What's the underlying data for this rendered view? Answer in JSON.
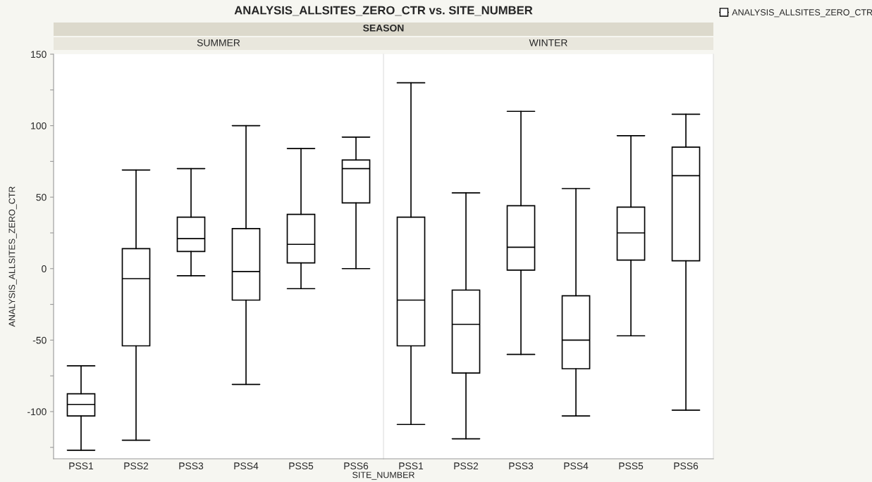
{
  "chart_data": [
    {
      "type": "box",
      "title": "ANALYSIS_ALLSITES_ZERO_CTR vs. SITE_NUMBER",
      "subtitle": "SEASON",
      "annotations": [
        "SUMMER"
      ],
      "xlabel": "SITE_NUMBER",
      "ylabel": "ANALYSIS_ALLSITES_ZERO_CTR",
      "legend": "top right",
      "grid": false,
      "categories": [
        "PSS1",
        "PSS2",
        "PSS3",
        "PSS4",
        "PSS5",
        "PSS6"
      ],
      "ylim": [
        -133,
        150
      ],
      "yticks": [
        {
          "value": -125,
          "label": null
        },
        -100,
        {
          "value": -75,
          "label": null
        },
        -50,
        {
          "value": -25,
          "label": null
        },
        0,
        {
          "value": 25,
          "label": null
        },
        50,
        {
          "value": 75,
          "label": null
        },
        100,
        {
          "value": 125,
          "label": null
        },
        150
      ],
      "series": [
        {
          "name": "ANALYSIS_ALLSITES_ZERO_CTR",
          "color": "#000000",
          "boxes": [
            {
              "low": -127,
              "q1": -103,
              "median": -95,
              "q3": -87.5,
              "high": -68
            },
            {
              "low": -120,
              "q1": -54,
              "median": -7,
              "q3": 14,
              "high": 69
            },
            {
              "low": -5,
              "q1": 12,
              "median": 21,
              "q3": 36,
              "high": 70
            },
            {
              "low": -81,
              "q1": -22,
              "median": -2,
              "q3": 28,
              "high": 100
            },
            {
              "low": -14,
              "q1": 4,
              "median": 17,
              "q3": 38,
              "high": 84
            },
            {
              "low": 0,
              "q1": 46,
              "median": 70,
              "q3": 76,
              "high": 92
            }
          ]
        }
      ]
    },
    {
      "type": "box",
      "annotations": [
        "WINTER"
      ],
      "grid": false,
      "tick_labels": "x",
      "categories": [
        "PSS1",
        "PSS2",
        "PSS3",
        "PSS4",
        "PSS5",
        "PSS6"
      ],
      "ylim": [
        -133,
        150
      ],
      "series": [
        {
          "color": "#000000",
          "boxes": [
            {
              "low": -109,
              "q1": -54,
              "median": -22,
              "q3": 36,
              "high": 130
            },
            {
              "low": -119,
              "q1": -73,
              "median": -39,
              "q3": -15,
              "high": 53
            },
            {
              "low": -60,
              "q1": -1,
              "median": 15,
              "q3": 44,
              "high": 110
            },
            {
              "low": -103,
              "q1": -70,
              "median": -50,
              "q3": -19,
              "high": 56
            },
            {
              "low": -47,
              "q1": 6,
              "median": 25,
              "q3": 43,
              "high": 93
            },
            {
              "low": -99,
              "q1": 5.5,
              "median": 65,
              "q3": 85,
              "high": 108
            }
          ]
        }
      ]
    }
  ]
}
